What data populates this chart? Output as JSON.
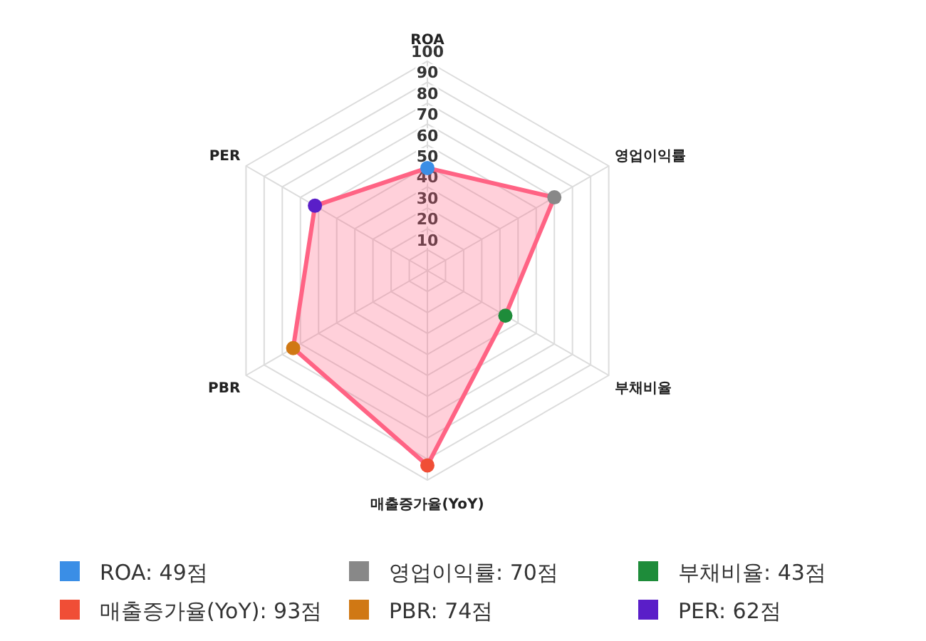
{
  "chart_data": {
    "type": "radar",
    "categories": [
      "ROA",
      "영업이익률",
      "부채비율",
      "매출증가율(YoY)",
      "PBR",
      "PER"
    ],
    "series": [
      {
        "color": "#ff6384",
        "values": [
          49,
          70,
          43,
          93,
          74,
          62
        ],
        "colors": [
          "#3a8ee6",
          "#888888",
          "#1e8c3a",
          "#f04e36",
          "#d07814",
          "#5a1ec8"
        ]
      }
    ],
    "annotations": [
      "ROA: 49점",
      "영업이익률: 70점",
      "부채비율: 43점",
      "매출증가율(YoY): 93점",
      "PBR: 74점",
      "PER: 62점"
    ],
    "ylim": [
      0,
      100
    ],
    "yticks": [
      10,
      20,
      30,
      40,
      50,
      60,
      70,
      80,
      90,
      100
    ],
    "grid": true,
    "marker": "circle"
  }
}
